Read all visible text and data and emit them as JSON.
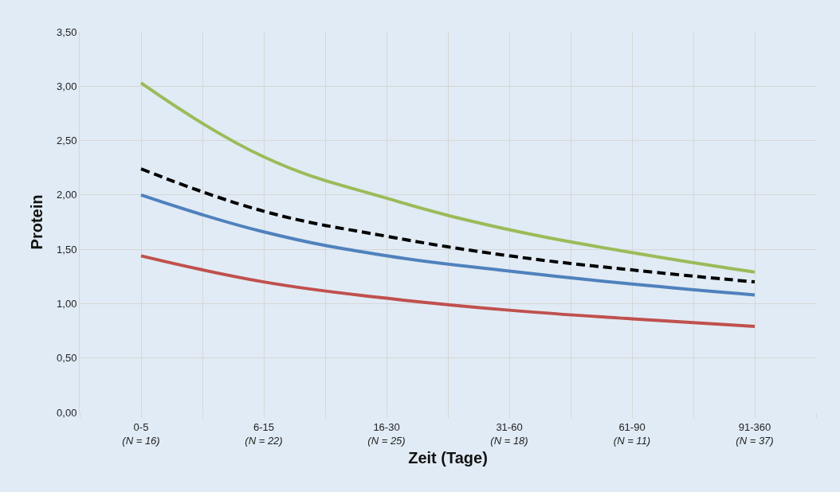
{
  "chart_data": {
    "type": "line",
    "xlabel": "Zeit (Tage)",
    "ylabel": "Protein",
    "categories": [
      "0-5\n(N = 16)",
      "6-15\n(N = 22)",
      "16-30\n(N = 25)",
      "31-60\n(N = 18)",
      "61-90\n(N = 11)",
      "91-360\n(N = 37)"
    ],
    "series": [
      {
        "color": "#9bbb59",
        "values": [
          3.03,
          2.35,
          1.97,
          1.68,
          1.47,
          1.29
        ]
      },
      {
        "color": "#000000",
        "line_style": "dashed",
        "values": [
          2.24,
          1.85,
          1.62,
          1.44,
          1.31,
          1.2
        ]
      },
      {
        "color": "#4f81bd",
        "values": [
          2.0,
          1.66,
          1.44,
          1.3,
          1.18,
          1.08
        ]
      },
      {
        "color": "#c0504d",
        "values": [
          1.44,
          1.2,
          1.05,
          0.94,
          0.86,
          0.79
        ]
      }
    ],
    "ylim": [
      0,
      3.5
    ],
    "yticks": [
      {
        "value": 0,
        "label": "0,00"
      },
      {
        "value": 0.5,
        "label": "0,50"
      },
      {
        "value": 1,
        "label": "1,00"
      },
      {
        "value": 1.5,
        "label": "1,50"
      },
      {
        "value": 2,
        "label": "2,00"
      },
      {
        "value": 2.5,
        "label": "2,50"
      },
      {
        "value": 3,
        "label": "3,00"
      },
      {
        "value": 3.5,
        "label": "3,50"
      }
    ],
    "grid": true,
    "marker": "none",
    "line_style": "solid"
  }
}
